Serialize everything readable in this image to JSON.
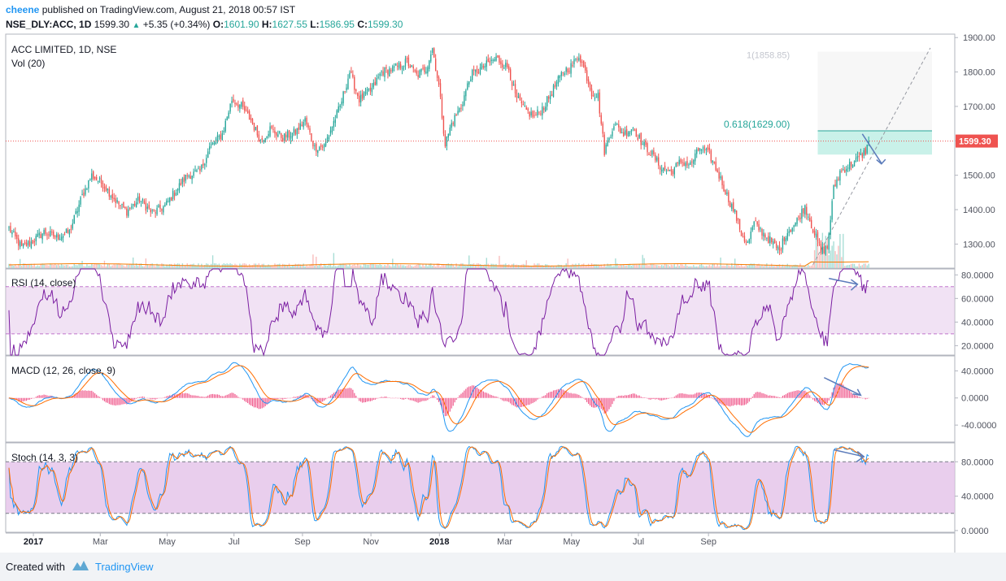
{
  "header": {
    "author": "cheene",
    "published_text": "published on TradingView.com, August 21, 2018 00:57 IST",
    "symbol": "NSE_DLY:ACC, 1D",
    "last": "1599.30",
    "change": "+5.35 (+0.34%)",
    "o_label": "O:",
    "o_value": "1601.90",
    "h_label": "H:",
    "h_value": "1627.55",
    "l_label": "L:",
    "l_value": "1586.95",
    "c_label": "C:",
    "c_value": "1599.30"
  },
  "footer": {
    "created_with": "Created with",
    "brand": "TradingView"
  },
  "colors": {
    "up": "#26a69a",
    "down": "#ef5350",
    "rsi": "#7b1fa2",
    "macd": "#2196f3",
    "signal": "#ff6d00",
    "hist": "#e91e63",
    "pane_fill": "#e1bee7",
    "fib_fill": "#b2ebe0",
    "arrow": "#5c7cbb"
  },
  "chart_data": [
    {
      "type": "candlestick",
      "title": "ACC LIMITED, 1D, NSE",
      "volume_label": "Vol (20)",
      "ylim": [
        1230,
        1910
      ],
      "y_ticks": [
        1300,
        1400,
        1500,
        1600,
        1700,
        1800,
        1900
      ],
      "y_tick_labels": [
        "1300.00",
        "1400.00",
        "1500.00",
        "1600.00",
        "1700.00",
        "1800.00",
        "1900.00"
      ],
      "x_labels": [
        "2017",
        "Mar",
        "May",
        "Jul",
        "Sep",
        "Nov",
        "2018",
        "Mar",
        "May",
        "Jul",
        "Sep"
      ],
      "last_price": 1599.3,
      "last_price_label": "1599.30",
      "fib_label": "0.618(1629.00)",
      "fib_level": 1629,
      "target_label": "1(1858.85)",
      "target_level": 1858.85,
      "close_anchors": [
        [
          0,
          1345
        ],
        [
          8,
          1290
        ],
        [
          14,
          1305
        ],
        [
          22,
          1335
        ],
        [
          30,
          1320
        ],
        [
          38,
          1335
        ],
        [
          46,
          1440
        ],
        [
          52,
          1500
        ],
        [
          60,
          1470
        ],
        [
          68,
          1420
        ],
        [
          74,
          1395
        ],
        [
          82,
          1430
        ],
        [
          90,
          1390
        ],
        [
          98,
          1410
        ],
        [
          104,
          1450
        ],
        [
          112,
          1500
        ],
        [
          120,
          1510
        ],
        [
          126,
          1580
        ],
        [
          134,
          1620
        ],
        [
          140,
          1720
        ],
        [
          146,
          1700
        ],
        [
          152,
          1660
        ],
        [
          158,
          1600
        ],
        [
          164,
          1635
        ],
        [
          172,
          1610
        ],
        [
          180,
          1625
        ],
        [
          186,
          1660
        ],
        [
          192,
          1580
        ],
        [
          198,
          1585
        ],
        [
          204,
          1655
        ],
        [
          208,
          1700
        ],
        [
          214,
          1800
        ],
        [
          220,
          1720
        ],
        [
          228,
          1750
        ],
        [
          234,
          1800
        ],
        [
          242,
          1810
        ],
        [
          250,
          1830
        ],
        [
          256,
          1790
        ],
        [
          262,
          1810
        ],
        [
          266,
          1870
        ],
        [
          270,
          1760
        ],
        [
          274,
          1590
        ],
        [
          278,
          1650
        ],
        [
          284,
          1700
        ],
        [
          290,
          1790
        ],
        [
          298,
          1815
        ],
        [
          306,
          1840
        ],
        [
          314,
          1810
        ],
        [
          318,
          1730
        ],
        [
          324,
          1690
        ],
        [
          330,
          1670
        ],
        [
          336,
          1700
        ],
        [
          342,
          1750
        ],
        [
          348,
          1800
        ],
        [
          354,
          1820
        ],
        [
          358,
          1850
        ],
        [
          362,
          1800
        ],
        [
          366,
          1740
        ],
        [
          370,
          1730
        ],
        [
          374,
          1570
        ],
        [
          380,
          1650
        ],
        [
          386,
          1620
        ],
        [
          392,
          1640
        ],
        [
          398,
          1590
        ],
        [
          404,
          1560
        ],
        [
          410,
          1520
        ],
        [
          416,
          1510
        ],
        [
          422,
          1540
        ],
        [
          428,
          1530
        ],
        [
          434,
          1580
        ],
        [
          440,
          1560
        ],
        [
          446,
          1500
        ],
        [
          452,
          1430
        ],
        [
          456,
          1390
        ],
        [
          460,
          1330
        ],
        [
          464,
          1300
        ],
        [
          468,
          1360
        ],
        [
          474,
          1330
        ],
        [
          480,
          1300
        ],
        [
          484,
          1280
        ],
        [
          488,
          1330
        ],
        [
          494,
          1360
        ],
        [
          500,
          1410
        ],
        [
          506,
          1330
        ],
        [
          510,
          1280
        ],
        [
          514,
          1290
        ],
        [
          518,
          1460
        ],
        [
          522,
          1510
        ],
        [
          528,
          1530
        ],
        [
          534,
          1550
        ],
        [
          538,
          1570
        ],
        [
          540,
          1599.3
        ]
      ],
      "volume_scale": "relative"
    },
    {
      "type": "line",
      "title": "RSI (14, close)",
      "ylim": [
        12,
        85
      ],
      "band": [
        30,
        70
      ],
      "y_ticks": [
        20,
        40,
        60,
        80
      ],
      "y_tick_labels": [
        "20.0000",
        "40.0000",
        "60.0000",
        "80.0000"
      ]
    },
    {
      "type": "line",
      "title": "MACD (12, 26, close, 9)",
      "ylim": [
        -65,
        62
      ],
      "y_ticks": [
        -40,
        0,
        40
      ],
      "y_tick_labels": [
        "-40.0000",
        "0.0000",
        "40.0000"
      ]
    },
    {
      "type": "line",
      "title": "Stoch (14, 3, 3)",
      "ylim": [
        -2,
        102
      ],
      "band": [
        20,
        80
      ],
      "y_ticks": [
        0,
        40,
        80
      ],
      "y_tick_labels": [
        "0.0000",
        "40.0000",
        "80.0000"
      ]
    }
  ]
}
